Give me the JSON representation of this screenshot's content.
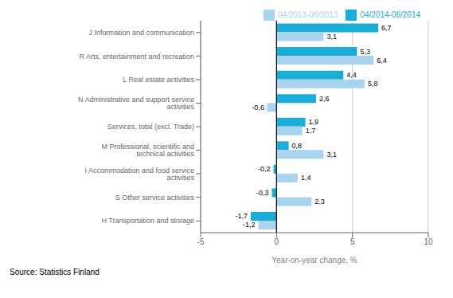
{
  "chart_data": {
    "type": "bar",
    "orientation": "horizontal",
    "categories": [
      "H Transportation and storage",
      "S Other service activities",
      "I Accommodation and food service activities",
      "M Professional, scientific and technical activities",
      "Services, total (excl. Trade)",
      "N Administrative and support service activities",
      "L Real estate activities",
      "R Arts, entertainment and recreation",
      "J Information and communication"
    ],
    "series": [
      {
        "name": "04/2014-06/2014",
        "color": "#1BADD8",
        "values": [
          -1.7,
          -0.3,
          -0.2,
          0.8,
          1.9,
          2.6,
          4.4,
          5.3,
          6.7
        ],
        "value_labels": [
          "-1,7",
          "-0,3",
          "-0,2",
          "0,8",
          "1,9",
          "2,6",
          "4,4",
          "5,3",
          "6,7"
        ]
      },
      {
        "name": "04/2013-06/2013",
        "color": "#A8D4F0",
        "values": [
          -1.2,
          2.3,
          1.4,
          3.1,
          1.7,
          -0.6,
          5.8,
          6.4,
          3.1
        ],
        "value_labels": [
          "-1,2",
          "2,3",
          "1,4",
          "3,1",
          "1,7",
          "-0,6",
          "5,8",
          "6,4",
          "3,1"
        ]
      }
    ],
    "xlim": [
      -5,
      10
    ],
    "xticks": [
      -5,
      0,
      5,
      10
    ],
    "xlabel": "Year-on-year change, %",
    "annotations": [
      "Source: Statistics Finland"
    ],
    "grid": true,
    "legend": "top",
    "data_labels": true
  }
}
